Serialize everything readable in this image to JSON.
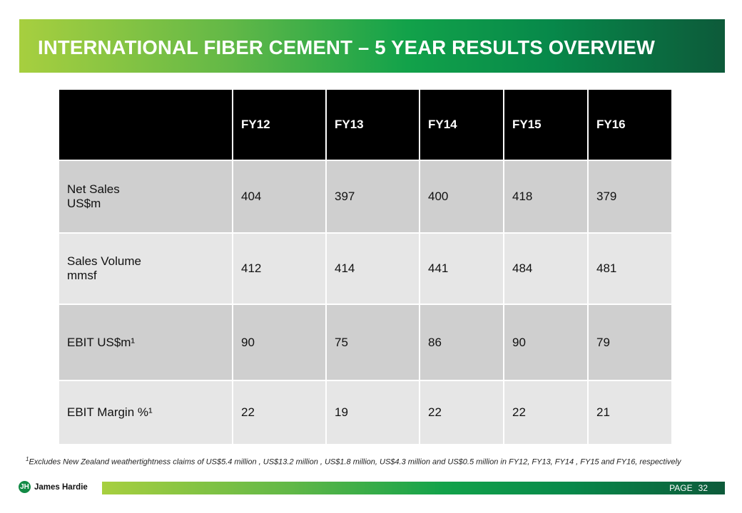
{
  "title": "INTERNATIONAL FIBER CEMENT – 5 YEAR RESULTS OVERVIEW",
  "table": {
    "header": [
      "",
      "FY12",
      "FY13",
      "FY14",
      "FY15",
      "FY16"
    ],
    "rows": [
      {
        "label_line1": "Net Sales",
        "label_line2": "US$m",
        "values": [
          "404",
          "397",
          "400",
          "418",
          "379"
        ]
      },
      {
        "label_line1": "Sales Volume",
        "label_line2": "mmsf",
        "values": [
          "412",
          "414",
          "441",
          "484",
          "481"
        ]
      },
      {
        "label_line1": "EBIT US$m¹",
        "label_line2": "",
        "values": [
          "90",
          "75",
          "86",
          "90",
          "79"
        ]
      },
      {
        "label_line1": "EBIT Margin %¹",
        "label_line2": "",
        "values": [
          "22",
          "19",
          "22",
          "22",
          "21"
        ]
      }
    ]
  },
  "footnote": {
    "marker": "1",
    "text": "Excludes New Zealand weathertightness claims of US$5.4 million , US$13.2 million , US$1.8 million, US$4.3 million and US$0.5 million in FY12, FY13, FY14 , FY15 and FY16, respectively"
  },
  "logo": {
    "name": "James Hardie",
    "mark": "JH"
  },
  "footer": {
    "page_label": "PAGE",
    "page_number": "32"
  },
  "colors": {
    "green_light": "#a7cf3f",
    "green_mid": "#12a24a",
    "green_dark": "#0d5a3a",
    "header_bg": "#000000",
    "row_dark": "#cfcfcf",
    "row_light": "#e6e6e6"
  }
}
